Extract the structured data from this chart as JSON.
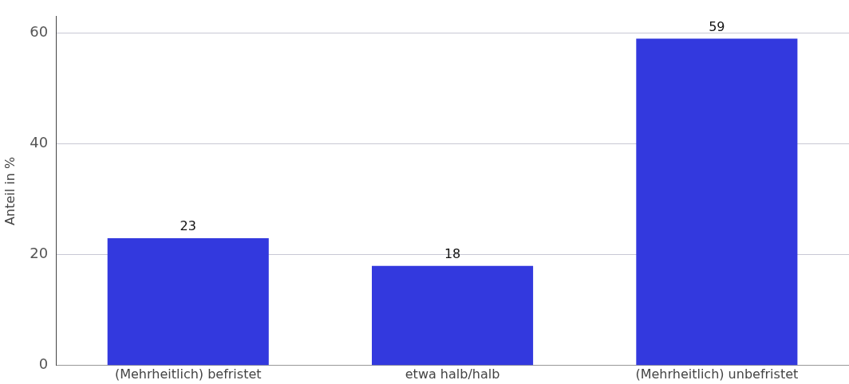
{
  "chart_data": {
    "type": "bar",
    "ylabel": "Anteil in %",
    "categories": [
      "(Mehrheitlich) befristet",
      "etwa halb/halb",
      "(Mehrheitlich) unbefristet"
    ],
    "values": [
      23,
      18,
      59
    ],
    "color": "#3339de",
    "ylim": [
      0,
      63
    ],
    "yticks": [
      0,
      20,
      40,
      60
    ],
    "grid": "y",
    "data_labels": true,
    "legend": false
  }
}
